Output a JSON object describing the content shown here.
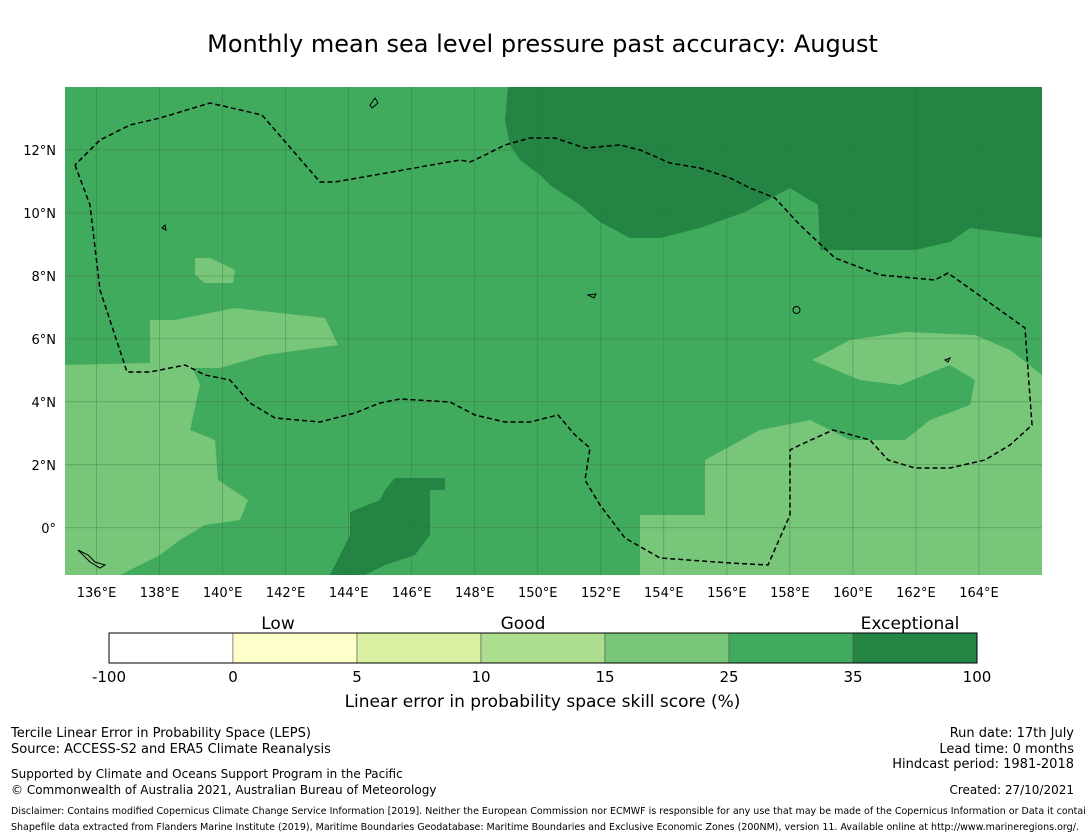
{
  "title": "Monthly mean sea level pressure past accuracy: August",
  "map": {
    "lat_labels": [
      "12°N",
      "10°N",
      "8°N",
      "6°N",
      "4°N",
      "2°N",
      "0°"
    ],
    "lat_values": [
      12,
      10,
      8,
      6,
      4,
      2,
      0
    ],
    "lon_labels": [
      "136°E",
      "138°E",
      "140°E",
      "142°E",
      "144°E",
      "146°E",
      "148°E",
      "150°E",
      "152°E",
      "154°E",
      "156°E",
      "158°E",
      "160°E",
      "162°E",
      "164°E"
    ],
    "lon_values": [
      136,
      138,
      140,
      142,
      144,
      146,
      148,
      150,
      152,
      154,
      156,
      158,
      160,
      162,
      164
    ],
    "lon_range": [
      135,
      166
    ],
    "lat_range": [
      -1.5,
      14
    ],
    "colors": {
      "c15_25": "#78c679",
      "c25_35": "#41ab5d",
      "c35_100": "#238443",
      "boundary": "#000000",
      "grid": "#3a6b45"
    },
    "eez_boundary_style": "dashed"
  },
  "colorbar": {
    "categories": [
      "Low",
      "Good",
      "Exceptional"
    ],
    "ticks": [
      "-100",
      "0",
      "5",
      "10",
      "15",
      "25",
      "35",
      "100"
    ],
    "colors": [
      "#ffffff",
      "#ffffcc",
      "#d9f0a3",
      "#addd8e",
      "#78c679",
      "#41ab5d",
      "#238443"
    ],
    "label": "Linear error in probability space skill score (%)"
  },
  "footer": {
    "left_line1": "Tercile Linear Error in Probability Space (LEPS)",
    "left_line2": "Source: ACCESS-S2 and ERA5 Climate Reanalysis",
    "left_line3": "Supported by Climate and Oceans Support Program in the Pacific",
    "left_line4": "© Commonwealth of Australia 2021, Australian Bureau of Meteorology",
    "run_date": "Run date: 17th July",
    "lead_time": "Lead time: 0 months",
    "hindcast": "Hindcast period: 1981-2018",
    "created": "Created: 27/10/2021",
    "disclaimer": "Disclaimer: Contains modified Copernicus Climate Change Service Information [2019]. Neither the European Commission nor ECMWF is responsible for any use that may be made of the Copernicus Information or Data it contains.",
    "shapefile": "Shapefile data extracted from Flanders Marine Institute (2019), Maritime Boundaries Geodatabase: Maritime Boundaries and Exclusive Economic Zones (200NM), version 11. Available online at http://www.marineregions.org/."
  }
}
